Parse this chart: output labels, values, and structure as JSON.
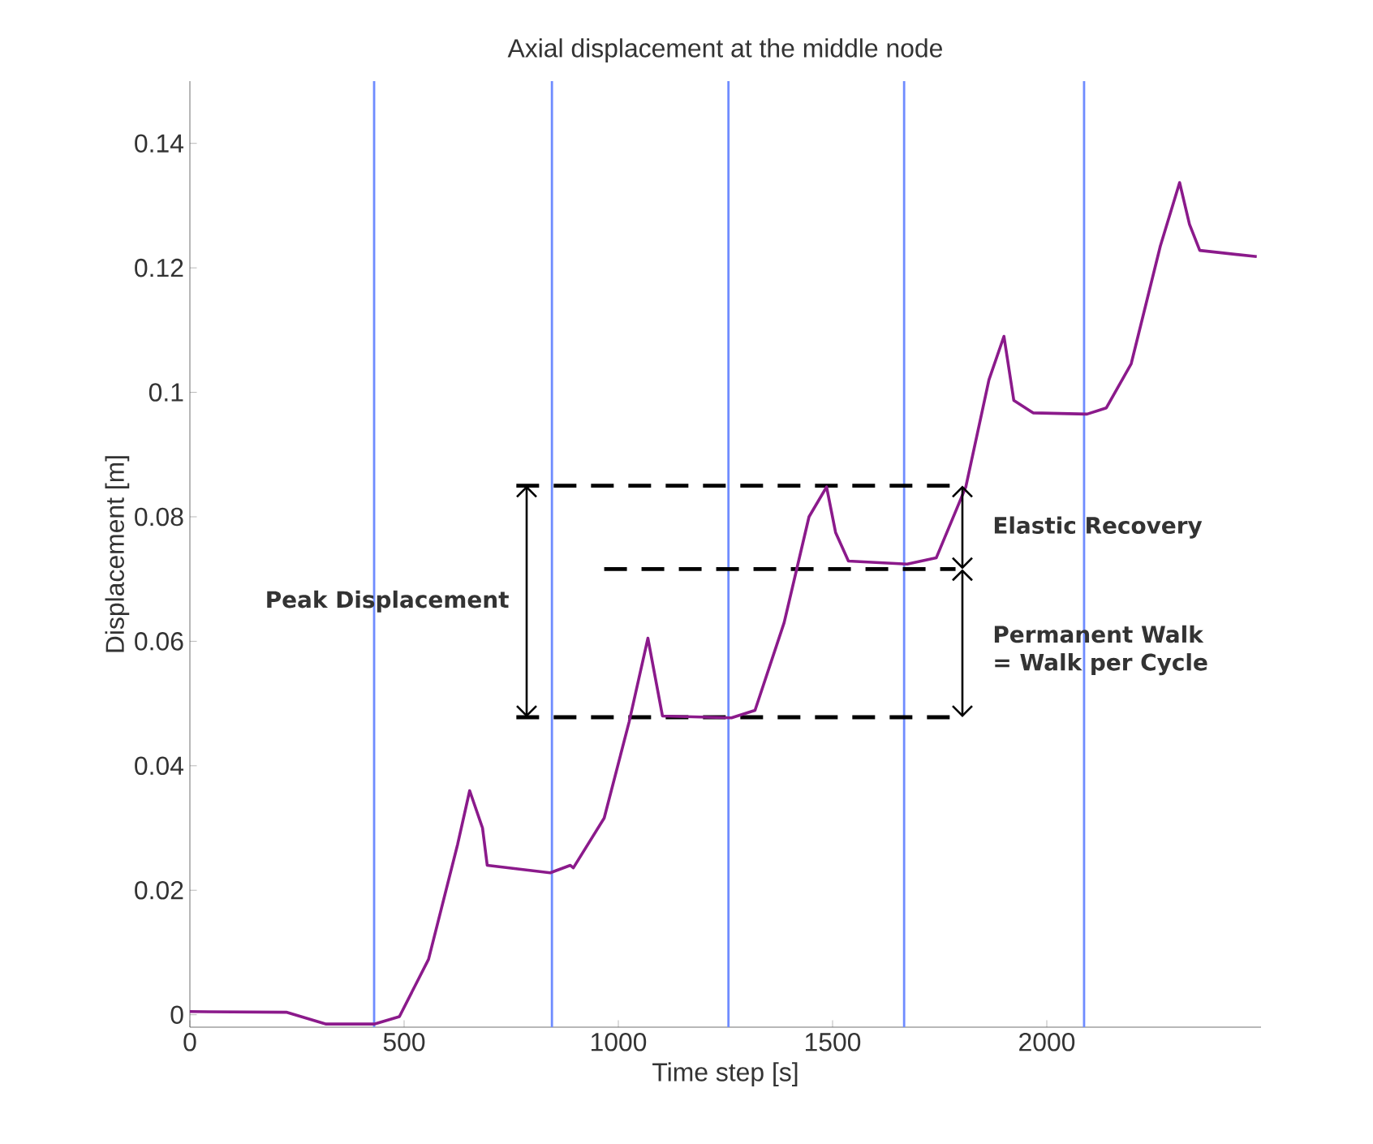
{
  "chart_data": {
    "type": "line",
    "title": "Axial displacement at the middle node",
    "xlabel": "Time step [s]",
    "ylabel": "Displacement [m]",
    "xlim": [
      0,
      2500
    ],
    "ylim": [
      -0.002,
      0.15
    ],
    "xticks": [
      0,
      500,
      1000,
      1500,
      2000
    ],
    "yticks": [
      0,
      0.02,
      0.04,
      0.06,
      0.08,
      0.1,
      0.12,
      0.14
    ],
    "series": [
      {
        "color": "#000000",
        "line_style": "dashed",
        "x": [
          762,
          1787
        ],
        "values": [
          0.085,
          0.085
        ]
      },
      {
        "color": "#000000",
        "line_style": "dashed",
        "x": [
          967,
          1787
        ],
        "values": [
          0.0716,
          0.0716
        ]
      },
      {
        "color": "#000000",
        "line_style": "dashed",
        "x": [
          762,
          1787
        ],
        "values": [
          0.0478,
          0.0478
        ]
      },
      {
        "color": "#8b1a8b",
        "x": [
          0,
          225,
          318,
          430,
          489,
          557,
          625,
          653,
          683,
          694,
          841,
          888,
          895,
          967,
          1025,
          1069,
          1103,
          1264,
          1319,
          1387,
          1445,
          1486,
          1507,
          1537,
          1674,
          1742,
          1811,
          1865,
          1900,
          1923,
          1968,
          2094,
          2139,
          2197,
          2265,
          2310,
          2333,
          2357,
          2490
        ],
        "values": [
          0.0005,
          0.0004,
          -0.0015,
          -0.0015,
          -0.0003,
          0.0089,
          0.0274,
          0.036,
          0.03,
          0.024,
          0.0228,
          0.024,
          0.0236,
          0.0316,
          0.047,
          0.0605,
          0.048,
          0.0477,
          0.0489,
          0.063,
          0.08,
          0.0848,
          0.0775,
          0.0729,
          0.0724,
          0.0734,
          0.0848,
          0.102,
          0.109,
          0.0987,
          0.0967,
          0.0965,
          0.0975,
          0.1046,
          0.1235,
          0.1337,
          0.127,
          0.1228,
          0.1218
        ]
      }
    ],
    "ref_lines": [
      {
        "axis": "x",
        "value": 430,
        "color": "#6f8cff"
      },
      {
        "axis": "x",
        "value": 845,
        "color": "#6f8cff"
      },
      {
        "axis": "x",
        "value": 1257,
        "color": "#6f8cff"
      },
      {
        "axis": "x",
        "value": 1667,
        "color": "#6f8cff"
      },
      {
        "axis": "x",
        "value": 2087,
        "color": "#6f8cff"
      }
    ],
    "annotations": [
      "Peak Displacement",
      "Elastic Recovery",
      "Permanent Walk",
      "= Walk per Cycle"
    ],
    "marker": "none",
    "line_style": "solid"
  }
}
